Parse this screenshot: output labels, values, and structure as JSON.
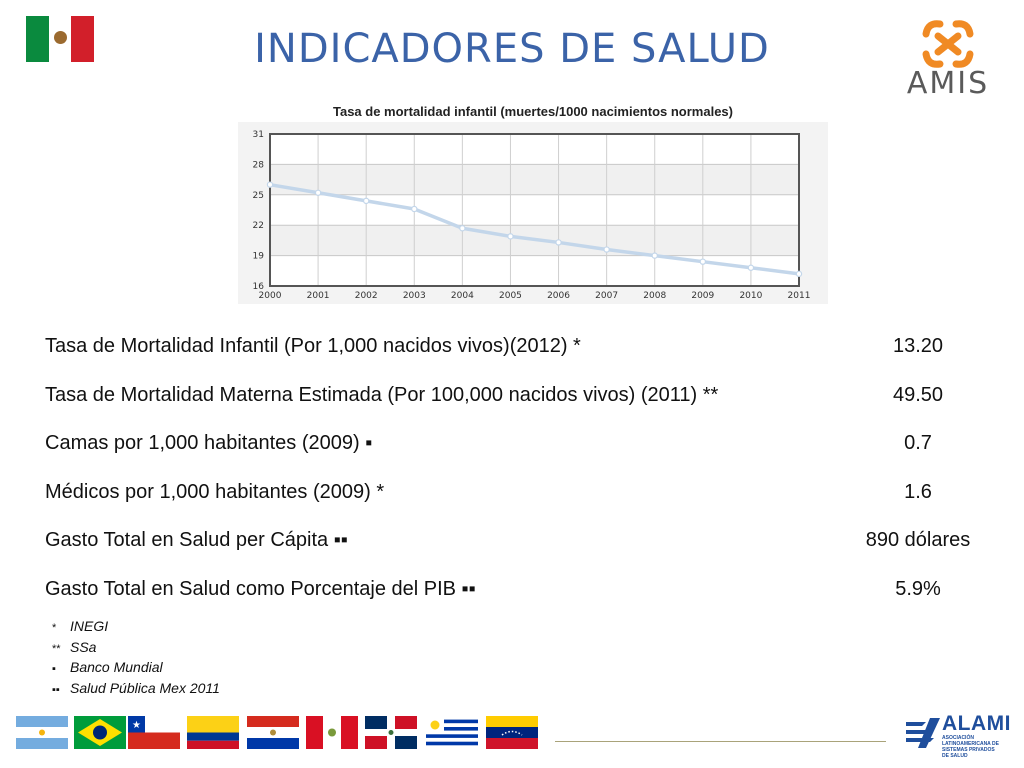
{
  "slide": {
    "title": "INDICADORES DE SALUD",
    "logo_text": "AMIS",
    "footer_logo_text": "ALAMI",
    "footer_logo_subtitle": "ASOCIACIÓN LATINOAMERICANA DE SISTEMAS PRIVADOS DE SALUD"
  },
  "chart_data": {
    "type": "line",
    "title": "Tasa de mortalidad infantil (muertes/1000 nacimientos normales)",
    "x": [
      "2000",
      "2001",
      "2002",
      "2003",
      "2004",
      "2005",
      "2006",
      "2007",
      "2008",
      "2009",
      "2010",
      "2011"
    ],
    "series": [
      {
        "values": [
          26.0,
          25.2,
          24.4,
          23.6,
          21.7,
          20.9,
          20.3,
          19.6,
          19.0,
          18.4,
          17.8,
          17.2
        ]
      }
    ],
    "yticks": [
      16,
      19,
      22,
      25,
      28,
      31
    ],
    "ylim": [
      16,
      31
    ],
    "grid": true,
    "line_color": "#c3d6ea",
    "marker_color": "#ffffff"
  },
  "indicators": [
    {
      "label": "Tasa de Mortalidad Infantil (Por 1,000 nacidos vivos)(2012) *",
      "value": "13.20"
    },
    {
      "label": "Tasa de Mortalidad Materna Estimada (Por 100,000 nacidos vivos) (2011) **",
      "value": "49.50"
    },
    {
      "label": "Camas por 1,000 habitantes (2009) ▪",
      "value": "0.7"
    },
    {
      "label": "Médicos por 1,000 habitantes (2009) *",
      "value": "1.6"
    },
    {
      "label": "Gasto Total en Salud per Cápita ▪▪",
      "value": "890 dólares"
    },
    {
      "label": "Gasto Total en Salud como Porcentaje del PIB ▪▪",
      "value": "5.9%"
    }
  ],
  "footnotes": [
    {
      "mark": "*",
      "text": "INEGI"
    },
    {
      "mark": "**",
      "text": "SSa"
    },
    {
      "mark": "▪",
      "text": "Banco Mundial"
    },
    {
      "mark": "▪▪",
      "text": "Salud Pública Mex 2011"
    }
  ],
  "flags": [
    "argentina-flag",
    "brazil-flag",
    "chile-flag",
    "colombia-flag",
    "paraguay-flag",
    "peru-flag",
    "dominican-republic-flag",
    "uruguay-flag",
    "venezuela-flag"
  ],
  "colors": {
    "title": "#3b63a8",
    "mexico_green": "#006847",
    "mexico_red": "#ce1126",
    "amis_orange": "#f08a24"
  }
}
